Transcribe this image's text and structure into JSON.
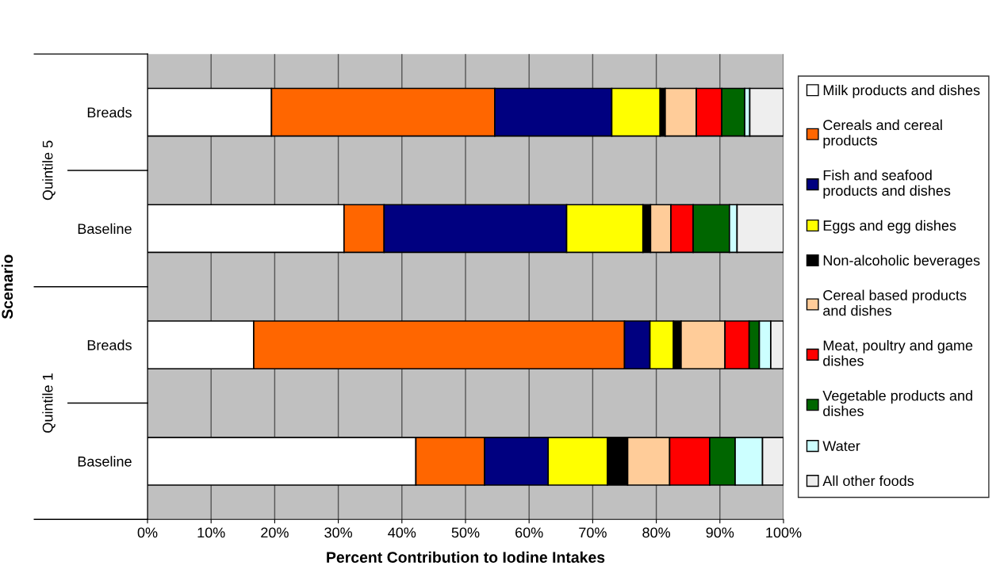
{
  "chart_data": {
    "type": "bar",
    "orientation": "horizontal",
    "stacked": true,
    "xlabel": "Percent Contribution to Iodine Intakes",
    "ylabel": "Scenario",
    "categories": [
      "Breads",
      "Baseline",
      "Breads",
      "Baseline"
    ],
    "annotations": [
      "Quintile 5",
      "Quintile 1"
    ],
    "xlim": [
      0,
      100
    ],
    "xticks": [
      {
        "value": 0,
        "label": "0%"
      },
      {
        "value": 10,
        "label": "10%"
      },
      {
        "value": 20,
        "label": "20%"
      },
      {
        "value": 30,
        "label": "30%"
      },
      {
        "value": 40,
        "label": "40%"
      },
      {
        "value": 50,
        "label": "50%"
      },
      {
        "value": 60,
        "label": "60%"
      },
      {
        "value": 70,
        "label": "70%"
      },
      {
        "value": 80,
        "label": "80%"
      },
      {
        "value": 90,
        "label": "90%"
      },
      {
        "value": 100,
        "label": "100%"
      }
    ],
    "grid": "x",
    "legend": "right",
    "series": [
      {
        "name": "Milk products and dishes",
        "color": "#ffffff",
        "values": [
          19.5,
          30.9,
          16.7,
          42.2
        ]
      },
      {
        "name": "Cereals and cereal products",
        "color": "#ff6600",
        "values": [
          35.1,
          6.3,
          58.3,
          10.8
        ]
      },
      {
        "name": "Fish and seafood products and dishes",
        "color": "#000080",
        "values": [
          18.4,
          28.7,
          4.0,
          10.0
        ]
      },
      {
        "name": "Eggs and egg dishes",
        "color": "#ffff00",
        "values": [
          7.6,
          12.0,
          3.7,
          9.3
        ]
      },
      {
        "name": "Non-alcoholic beverages",
        "color": "#000000",
        "values": [
          0.8,
          1.2,
          1.2,
          3.2
        ]
      },
      {
        "name": "Cereal based products and dishes",
        "color": "#ffcc99",
        "values": [
          4.9,
          3.2,
          6.9,
          6.6
        ]
      },
      {
        "name": "Meat, poultry and game dishes",
        "color": "#ff0000",
        "values": [
          4.0,
          3.5,
          3.8,
          6.3
        ]
      },
      {
        "name": "Vegetable products and dishes",
        "color": "#006600",
        "values": [
          3.6,
          5.7,
          1.6,
          4.0
        ]
      },
      {
        "name": "Water",
        "color": "#ccffff",
        "values": [
          0.8,
          1.2,
          1.8,
          4.3
        ]
      },
      {
        "name": "All other foods",
        "color": "#eeeeee",
        "values": [
          5.3,
          7.3,
          2.0,
          3.3
        ]
      }
    ]
  }
}
